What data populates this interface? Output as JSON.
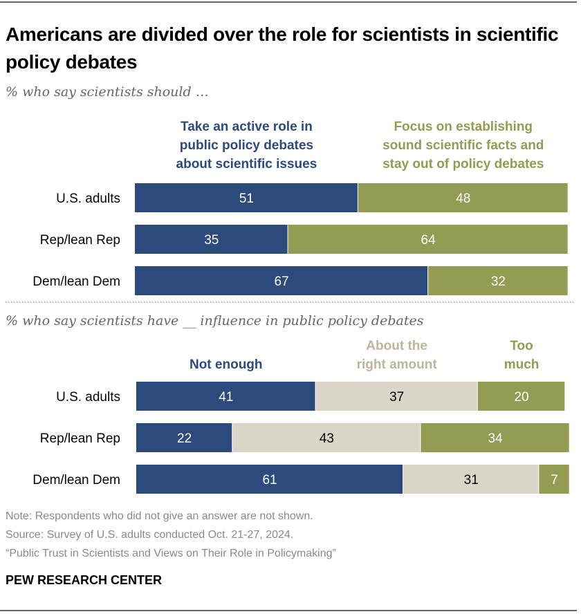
{
  "title": "Americans are divided over the role for scientists in scientific policy debates",
  "colors": {
    "blue": "#2c4a7c",
    "olive": "#949b52",
    "beige": "#d9d6c7",
    "beige_label": "#bdb79a"
  },
  "chart_data": [
    {
      "type": "stacked-bar-horizontal",
      "subtitle": "% who say scientists should …",
      "categories": [
        "U.S. adults",
        "Rep/lean Rep",
        "Dem/lean Dem"
      ],
      "series": [
        {
          "name": "Take an active role in public policy debates about scientific issues",
          "label_lines": [
            "Take an active role in",
            "public policy debates",
            "about scientific issues"
          ],
          "color": "#2c4a7c",
          "values": [
            51,
            35,
            67
          ]
        },
        {
          "name": "Focus on establishing sound scientific facts and stay out of policy debates",
          "label_lines": [
            "Focus on establishing",
            "sound scientific facts and",
            "stay out of policy debates"
          ],
          "color": "#949b52",
          "values": [
            48,
            64,
            32
          ]
        }
      ]
    },
    {
      "type": "stacked-bar-horizontal",
      "subtitle": "% who say scientists have __ influence in public policy debates",
      "categories": [
        "U.S. adults",
        "Rep/lean Rep",
        "Dem/lean Dem"
      ],
      "series": [
        {
          "name": "Not enough",
          "label_lines": [
            "Not enough"
          ],
          "color": "#2c4a7c",
          "values": [
            41,
            22,
            61
          ]
        },
        {
          "name": "About the right amount",
          "label_lines": [
            "About the",
            "right amount"
          ],
          "color": "#d9d6c7",
          "values": [
            37,
            43,
            31
          ]
        },
        {
          "name": "Too much",
          "label_lines": [
            "Too",
            "much"
          ],
          "color": "#949b52",
          "values": [
            20,
            34,
            7
          ]
        }
      ]
    }
  ],
  "notes": [
    "Note: Respondents who did not give an answer are not shown.",
    "Source: Survey of U.S. adults conducted Oct. 21-27, 2024.",
    "“Public Trust in Scientists and Views on Their Role in Policymaking”"
  ],
  "source_org": "PEW RESEARCH CENTER"
}
